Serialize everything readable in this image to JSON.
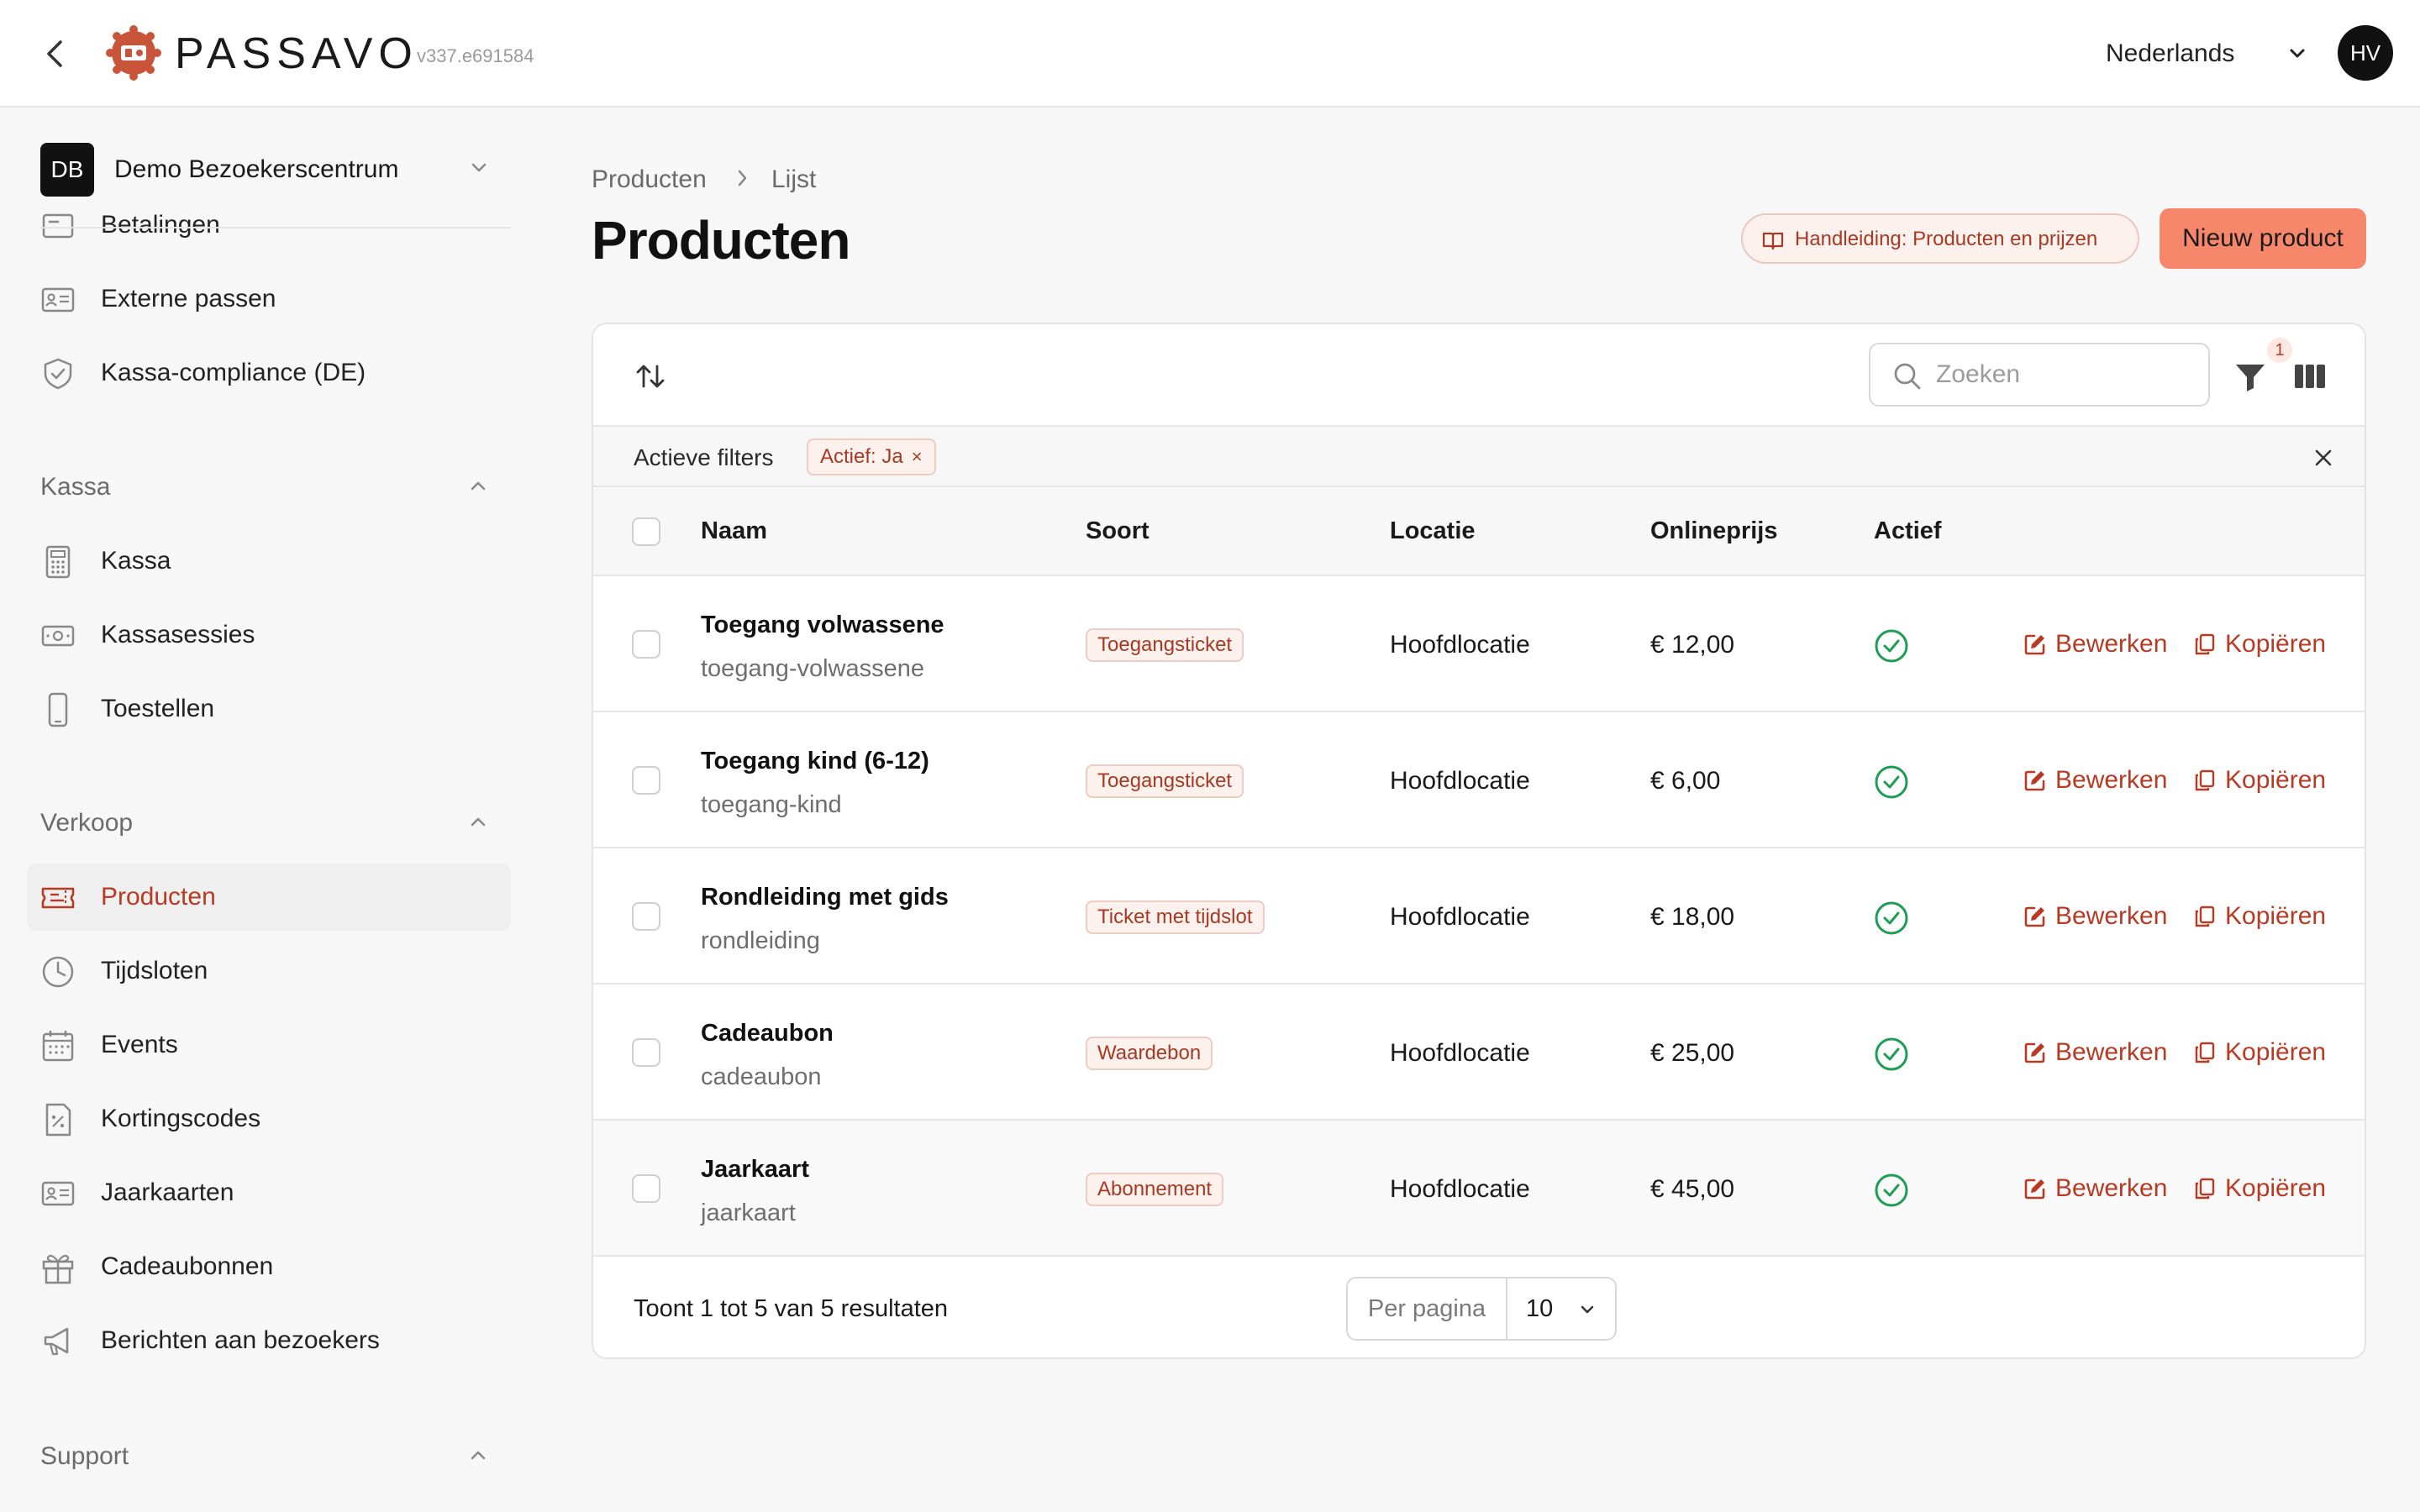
{
  "header": {
    "brand": "PASSAVO",
    "version": "v337.e691584",
    "language": "Nederlands",
    "user_initials": "HV"
  },
  "sidebar": {
    "org": {
      "initials": "DB",
      "name": "Demo Bezoekerscentrum"
    },
    "partial_item": "Betalingen",
    "top_items": [
      {
        "label": "Externe passen",
        "icon": "id-card-icon"
      },
      {
        "label": "Kassa-compliance (DE)",
        "icon": "shield-check-icon"
      }
    ],
    "sections": [
      {
        "title": "Kassa",
        "items": [
          {
            "label": "Kassa",
            "icon": "calculator-icon"
          },
          {
            "label": "Kassasessies",
            "icon": "cash-icon"
          },
          {
            "label": "Toestellen",
            "icon": "phone-icon"
          }
        ]
      },
      {
        "title": "Verkoop",
        "items": [
          {
            "label": "Producten",
            "icon": "ticket-icon",
            "active": true
          },
          {
            "label": "Tijdsloten",
            "icon": "clock-icon"
          },
          {
            "label": "Events",
            "icon": "calendar-icon"
          },
          {
            "label": "Kortingscodes",
            "icon": "percent-icon"
          },
          {
            "label": "Jaarkaarten",
            "icon": "id-card-icon"
          },
          {
            "label": "Cadeaubonnen",
            "icon": "gift-icon"
          },
          {
            "label": "Berichten aan bezoekers",
            "icon": "megaphone-icon"
          }
        ]
      },
      {
        "title": "Support",
        "items": []
      }
    ]
  },
  "breadcrumb": [
    "Producten",
    "Lijst"
  ],
  "page": {
    "title": "Producten",
    "guide_label": "Handleiding: Producten en prijzen",
    "new_label": "Nieuw product"
  },
  "toolbar": {
    "search_placeholder": "Zoeken",
    "filter_count": "1"
  },
  "filters": {
    "label": "Actieve filters",
    "chips": [
      "Actief: Ja"
    ]
  },
  "table": {
    "columns": [
      "Naam",
      "Soort",
      "Locatie",
      "Onlineprijs",
      "Actief"
    ],
    "rows": [
      {
        "name": "Toegang volwassene",
        "slug": "toegang-volwassene",
        "type": "Toegangsticket",
        "location": "Hoofdlocatie",
        "price": "€ 12,00",
        "active": true
      },
      {
        "name": "Toegang kind (6-12)",
        "slug": "toegang-kind",
        "type": "Toegangsticket",
        "location": "Hoofdlocatie",
        "price": "€ 6,00",
        "active": true
      },
      {
        "name": "Rondleiding met gids",
        "slug": "rondleiding",
        "type": "Ticket met tijdslot",
        "location": "Hoofdlocatie",
        "price": "€ 18,00",
        "active": true
      },
      {
        "name": "Cadeaubon",
        "slug": "cadeaubon",
        "type": "Waardebon",
        "location": "Hoofdlocatie",
        "price": "€ 25,00",
        "active": true
      },
      {
        "name": "Jaarkaart",
        "slug": "jaarkaart",
        "type": "Abonnement",
        "location": "Hoofdlocatie",
        "price": "€ 45,00",
        "active": true
      }
    ],
    "edit_label": "Bewerken",
    "copy_label": "Kopiëren"
  },
  "footer": {
    "results": "Toont 1 tot 5 van 5 resultaten",
    "per_page_label": "Per pagina",
    "per_page_value": "10"
  },
  "colors": {
    "accent": "#b83a23",
    "primary_button": "#f7876b",
    "active_check": "#1f9d55"
  }
}
